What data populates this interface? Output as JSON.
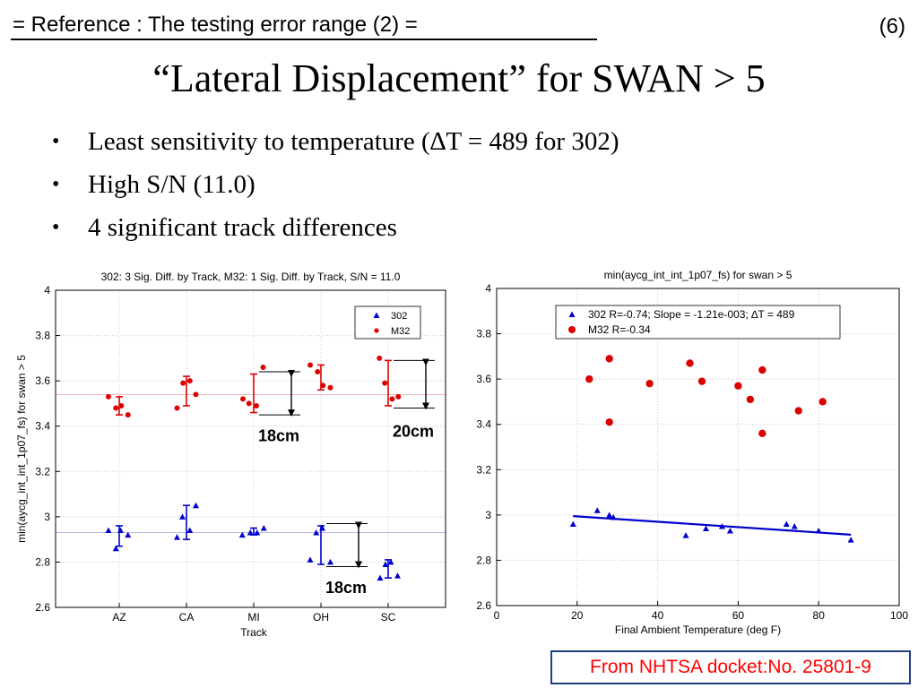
{
  "header": {
    "reference_title": "= Reference : The testing error range (2) =",
    "slide_number": "(6)",
    "main_title": "“Lateral Displacement” for SWAN > 5"
  },
  "bullets": [
    "Least sensitivity to temperature (∆T = 489 for 302)",
    "High S/N (11.0)",
    "4 significant track differences"
  ],
  "colors": {
    "blue": "#0000cc",
    "red": "#dd0000",
    "grid": "#c8c8c8",
    "source_text": "#ff0000",
    "source_border": "#1f3f7f"
  },
  "chart_data": [
    {
      "type": "scatter",
      "title": "302: 3 Sig. Diff. by Track, M32: 1 Sig. Diff. by Track, S/N = 11.0",
      "xlabel": "Track",
      "ylabel": "min(aycg_int_int_1p07_fs) for swan > 5",
      "categories": [
        "AZ",
        "CA",
        "MI",
        "OH",
        "SC"
      ],
      "ylim": [
        2.6,
        4
      ],
      "yticks": [
        "2.6",
        "2.8",
        "3",
        "3.2",
        "3.4",
        "3.6",
        "3.8",
        "4"
      ],
      "grid": true,
      "legend_position": "top-right",
      "series": [
        {
          "name": "302",
          "marker": "triangle",
          "color": "#0000cc",
          "points": [
            {
              "cat": 0,
              "dx": -0.16,
              "y": 2.94
            },
            {
              "cat": 0,
              "dx": -0.05,
              "y": 2.86
            },
            {
              "cat": 0,
              "dx": 0.02,
              "y": 2.94
            },
            {
              "cat": 0,
              "dx": 0.13,
              "y": 2.92
            },
            {
              "cat": 1,
              "dx": -0.14,
              "y": 2.91
            },
            {
              "cat": 1,
              "dx": -0.06,
              "y": 3.0
            },
            {
              "cat": 1,
              "dx": 0.05,
              "y": 2.94
            },
            {
              "cat": 1,
              "dx": 0.14,
              "y": 3.05
            },
            {
              "cat": 2,
              "dx": -0.17,
              "y": 2.92
            },
            {
              "cat": 2,
              "dx": -0.05,
              "y": 2.93
            },
            {
              "cat": 2,
              "dx": 0.05,
              "y": 2.93
            },
            {
              "cat": 2,
              "dx": 0.15,
              "y": 2.95
            },
            {
              "cat": 3,
              "dx": -0.16,
              "y": 2.81
            },
            {
              "cat": 3,
              "dx": -0.07,
              "y": 2.93
            },
            {
              "cat": 3,
              "dx": 0.02,
              "y": 2.95
            },
            {
              "cat": 3,
              "dx": 0.14,
              "y": 2.8
            },
            {
              "cat": 4,
              "dx": -0.12,
              "y": 2.73
            },
            {
              "cat": 4,
              "dx": -0.04,
              "y": 2.79
            },
            {
              "cat": 4,
              "dx": 0.04,
              "y": 2.8
            },
            {
              "cat": 4,
              "dx": 0.14,
              "y": 2.74
            }
          ],
          "mean_line": 2.93,
          "error_bars": [
            {
              "cat": 0,
              "low": 2.87,
              "high": 2.96
            },
            {
              "cat": 1,
              "low": 2.9,
              "high": 3.05
            },
            {
              "cat": 2,
              "low": 2.92,
              "high": 2.95
            },
            {
              "cat": 3,
              "low": 2.79,
              "high": 2.96
            },
            {
              "cat": 4,
              "low": 2.73,
              "high": 2.81
            }
          ]
        },
        {
          "name": "M32",
          "marker": "dot",
          "color": "#dd0000",
          "points": [
            {
              "cat": 0,
              "dx": -0.16,
              "y": 3.53
            },
            {
              "cat": 0,
              "dx": -0.05,
              "y": 3.48
            },
            {
              "cat": 0,
              "dx": 0.03,
              "y": 3.49
            },
            {
              "cat": 0,
              "dx": 0.13,
              "y": 3.45
            },
            {
              "cat": 1,
              "dx": -0.14,
              "y": 3.48
            },
            {
              "cat": 1,
              "dx": -0.05,
              "y": 3.59
            },
            {
              "cat": 1,
              "dx": 0.05,
              "y": 3.6
            },
            {
              "cat": 1,
              "dx": 0.14,
              "y": 3.54
            },
            {
              "cat": 2,
              "dx": -0.16,
              "y": 3.52
            },
            {
              "cat": 2,
              "dx": -0.07,
              "y": 3.5
            },
            {
              "cat": 2,
              "dx": 0.04,
              "y": 3.49
            },
            {
              "cat": 2,
              "dx": 0.14,
              "y": 3.66
            },
            {
              "cat": 3,
              "dx": -0.16,
              "y": 3.67
            },
            {
              "cat": 3,
              "dx": -0.05,
              "y": 3.64
            },
            {
              "cat": 3,
              "dx": 0.03,
              "y": 3.58
            },
            {
              "cat": 3,
              "dx": 0.14,
              "y": 3.57
            },
            {
              "cat": 4,
              "dx": -0.13,
              "y": 3.7
            },
            {
              "cat": 4,
              "dx": -0.05,
              "y": 3.59
            },
            {
              "cat": 4,
              "dx": 0.06,
              "y": 3.52
            },
            {
              "cat": 4,
              "dx": 0.15,
              "y": 3.53
            }
          ],
          "mean_line": 3.54,
          "error_bars": [
            {
              "cat": 0,
              "low": 3.45,
              "high": 3.53
            },
            {
              "cat": 1,
              "low": 3.49,
              "high": 3.62
            },
            {
              "cat": 2,
              "low": 3.46,
              "high": 3.63
            },
            {
              "cat": 3,
              "low": 3.56,
              "high": 3.67
            },
            {
              "cat": 4,
              "low": 3.49,
              "high": 3.69
            }
          ]
        }
      ],
      "annotations": [
        {
          "text": "18cm",
          "cat": 2,
          "low": 3.45,
          "high": 3.64,
          "label_y": 3.35
        },
        {
          "text": "20cm",
          "cat": 4,
          "low": 3.48,
          "high": 3.69,
          "label_y": 3.37
        },
        {
          "text": "18cm",
          "cat": 3,
          "low": 2.78,
          "high": 2.97,
          "label_y": 2.68
        }
      ]
    },
    {
      "type": "scatter",
      "title": "min(aycg_int_int_1p07_fs) for swan > 5",
      "xlabel": "Final Ambient Temperature (deg F)",
      "ylabel": "",
      "xlim": [
        0,
        100
      ],
      "ylim": [
        2.6,
        4
      ],
      "xticks": [
        "0",
        "20",
        "40",
        "60",
        "80",
        "100"
      ],
      "yticks": [
        "2.6",
        "2.8",
        "3",
        "3.2",
        "3.4",
        "3.6",
        "3.8",
        "4"
      ],
      "grid": true,
      "legend_position": "top-right",
      "series": [
        {
          "name": "302 R=-0.74; Slope = -1.21e-003; ∆T = 489",
          "marker": "triangle",
          "color": "#0000cc",
          "x": [
            19,
            25,
            28,
            29,
            47,
            52,
            56,
            58,
            72,
            74,
            80,
            88
          ],
          "y": [
            2.96,
            3.02,
            3.0,
            2.99,
            2.91,
            2.94,
            2.95,
            2.93,
            2.96,
            2.95,
            2.93,
            2.89
          ],
          "fit_line": {
            "x": [
              19,
              88
            ],
            "y": [
              2.995,
              2.913
            ]
          }
        },
        {
          "name": "M32 R=-0.34",
          "marker": "dot",
          "color": "#dd0000",
          "x": [
            23,
            28,
            28,
            38,
            48,
            51,
            60,
            63,
            66,
            66,
            75,
            81
          ],
          "y": [
            3.6,
            3.69,
            3.41,
            3.58,
            3.67,
            3.59,
            3.57,
            3.51,
            3.64,
            3.36,
            3.46,
            3.5
          ]
        }
      ]
    }
  ],
  "source_note": "From NHTSA docket:No. 25801-9"
}
